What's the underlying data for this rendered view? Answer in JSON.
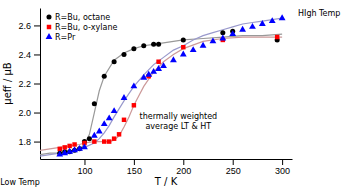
{
  "chart_data": {
    "type": "scatter",
    "xlabel": "T / K",
    "ylabel": "μeff / μB",
    "xlim": [
      55,
      310
    ],
    "ylim": [
      1.68,
      2.72
    ],
    "xticks": [
      100,
      150,
      200,
      250,
      300
    ],
    "yticks": [
      1.8,
      {
        "value": 2.0,
        "label": "2.0"
      },
      2.2,
      2.4,
      2.6
    ],
    "grid": false,
    "legend": "upper left",
    "series": [
      {
        "type": "line",
        "color": "#999999",
        "x": [
          55,
          65,
          75,
          85,
          95,
          100,
          105,
          110,
          115,
          120,
          130,
          140,
          150,
          160,
          170,
          180,
          200,
          220,
          240,
          260,
          280,
          300
        ],
        "values": [
          1.71,
          1.72,
          1.72,
          1.73,
          1.75,
          1.78,
          1.85,
          2.0,
          2.15,
          2.25,
          2.36,
          2.41,
          2.44,
          2.46,
          2.47,
          2.48,
          2.5,
          2.51,
          2.52,
          2.53,
          2.53,
          2.54
        ]
      },
      {
        "type": "line",
        "color": "#cc9999",
        "x": [
          55,
          65,
          75,
          85,
          95,
          100,
          110,
          115,
          120,
          125,
          130,
          135,
          140,
          145,
          150,
          160,
          170,
          180,
          190,
          200,
          220,
          240,
          260,
          280,
          300
        ],
        "values": [
          1.74,
          1.75,
          1.76,
          1.77,
          1.78,
          1.79,
          1.8,
          1.8,
          1.8,
          1.8,
          1.81,
          1.84,
          1.9,
          1.97,
          2.05,
          2.18,
          2.28,
          2.35,
          2.4,
          2.44,
          2.49,
          2.51,
          2.52,
          2.52,
          2.52
        ]
      },
      {
        "type": "line",
        "color": "#9999cc",
        "x": [
          55,
          65,
          75,
          85,
          95,
          100,
          110,
          115,
          120,
          125,
          130,
          140,
          150,
          160,
          170,
          180,
          190,
          200,
          210,
          220,
          230,
          240,
          250,
          260,
          270,
          280,
          290,
          300
        ],
        "values": [
          1.7,
          1.71,
          1.72,
          1.73,
          1.75,
          1.76,
          1.79,
          1.82,
          1.86,
          1.91,
          1.97,
          2.08,
          2.18,
          2.26,
          2.33,
          2.38,
          2.43,
          2.46,
          2.5,
          2.53,
          2.55,
          2.57,
          2.59,
          2.61,
          2.62,
          2.63,
          2.64,
          2.65
        ]
      },
      {
        "type": "scatter",
        "name": "R=Bu, octane",
        "color": "black",
        "marker": "circle",
        "x": [
          75,
          80,
          85,
          90,
          95,
          100,
          105,
          110,
          120,
          130,
          140,
          150,
          160,
          170,
          175,
          200,
          240,
          250,
          295
        ],
        "values": [
          1.72,
          1.73,
          1.73,
          1.74,
          1.75,
          1.8,
          1.82,
          2.06,
          2.25,
          2.35,
          2.4,
          2.44,
          2.46,
          2.47,
          2.47,
          2.5,
          2.55,
          2.56,
          2.5
        ]
      },
      {
        "type": "scatter",
        "name": "R=Bu, o-xylane",
        "color": "red",
        "marker": "square",
        "x": [
          75,
          80,
          85,
          90,
          100,
          110,
          120,
          125,
          130,
          135,
          140,
          150,
          165,
          175,
          200,
          240,
          295
        ],
        "values": [
          1.75,
          1.76,
          1.77,
          1.78,
          1.79,
          1.8,
          1.8,
          1.8,
          1.82,
          1.85,
          1.95,
          2.05,
          2.25,
          2.35,
          2.45,
          2.5,
          2.52
        ]
      },
      {
        "type": "scatter",
        "name": "R=Pr",
        "color": "blue",
        "marker": "triangle",
        "x": [
          75,
          80,
          85,
          90,
          95,
          100,
          110,
          115,
          120,
          125,
          130,
          140,
          150,
          160,
          165,
          170,
          175,
          180,
          190,
          200,
          210,
          220,
          230,
          240,
          250,
          260,
          270,
          280,
          290,
          300
        ],
        "values": [
          1.71,
          1.72,
          1.73,
          1.74,
          1.75,
          1.76,
          1.84,
          1.87,
          1.92,
          1.96,
          2.01,
          2.1,
          2.18,
          2.24,
          2.26,
          2.28,
          2.3,
          2.32,
          2.36,
          2.4,
          2.43,
          2.46,
          2.49,
          2.51,
          2.54,
          2.57,
          2.59,
          2.61,
          2.63,
          2.65
        ]
      }
    ],
    "annotations": [
      {
        "text": "thermally weighted\naverage LT & HT",
        "x": 195,
        "y": 1.94
      },
      {
        "text": "Low Temp"
      },
      {
        "text": "HIgh Temp"
      }
    ]
  }
}
